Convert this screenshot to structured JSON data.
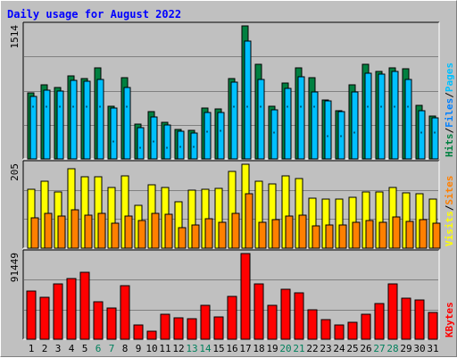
{
  "chart_data": {
    "type": "bar",
    "title": "Daily usage for August 2022",
    "colors": {
      "background": "#c0c0c0",
      "title": "#0000ff",
      "hits": "#008040",
      "files": "#0080ff",
      "pages": "#00c0ff",
      "visits": "#ff8000",
      "sites": "#ffff00",
      "kbytes": "#ff0000",
      "weekend_label": "#00805c"
    },
    "x": [
      "1",
      "2",
      "3",
      "4",
      "5",
      "6",
      "7",
      "8",
      "9",
      "10",
      "11",
      "12",
      "13",
      "14",
      "15",
      "16",
      "17",
      "18",
      "19",
      "20",
      "21",
      "22",
      "23",
      "24",
      "25",
      "26",
      "27",
      "28",
      "29",
      "30",
      "31"
    ],
    "weekend_days": [
      "6",
      "7",
      "13",
      "14",
      "20",
      "21",
      "27",
      "28"
    ],
    "panels": [
      {
        "id": "hits",
        "max_label": "1514",
        "ymax": 1514,
        "legend": [
          "Hits",
          "/",
          "Files",
          "/",
          "Pages"
        ],
        "series": [
          {
            "name": "Hits",
            "values": [
              753,
              848,
              814,
              942,
              917,
              1041,
              602,
              925,
              399,
              543,
              418,
              333,
              326,
              576,
              573,
              914,
              1514,
              1079,
              595,
              864,
              1039,
              926,
              668,
              548,
              839,
              1075,
              1000,
              1040,
              1025,
              606,
              488
            ]
          },
          {
            "name": "Files",
            "values": [
              711,
              786,
              777,
              890,
              880,
              900,
              579,
              808,
              351,
              481,
              389,
              319,
              299,
              526,
              533,
              870,
              1342,
              904,
              561,
              802,
              932,
              761,
              660,
              536,
              764,
              980,
              969,
              1000,
              900,
              551,
              469
            ]
          },
          {
            "name": "Pages",
            "values": [
              598,
              600,
              600,
              600,
              600,
              600,
              200,
              600,
              128,
              200,
              130,
              140,
              140,
              320,
              330,
              600,
              600,
              600,
              300,
              600,
              600,
              600,
              260,
              260,
              300,
              600,
              600,
              600,
              600,
              300,
              300
            ]
          }
        ]
      },
      {
        "id": "visits",
        "max_label": "205",
        "ymax": 205,
        "legend": [
          "Visits",
          "/",
          "Sites"
        ],
        "series": [
          {
            "name": "Visits",
            "values": [
              145,
              164,
              137,
              195,
              175,
              175,
              148,
              177,
              105,
              155,
              148,
              114,
              141,
              145,
              146,
              188,
              205,
              163,
              157,
              176,
              170,
              122,
              121,
              121,
              125,
              137,
              138,
              148,
              135,
              132,
              120
            ]
          },
          {
            "name": "Sites",
            "values": [
              75,
              86,
              79,
              93,
              80,
              86,
              60,
              78,
              68,
              84,
              82,
              51,
              56,
              72,
              64,
              84,
              133,
              64,
              70,
              79,
              81,
              55,
              57,
              57,
              63,
              67,
              64,
              77,
              66,
              69,
              62
            ]
          }
        ]
      },
      {
        "id": "kbytes",
        "max_label": "91449",
        "ymax": 91449,
        "legend": [
          "KBytes"
        ],
        "series": [
          {
            "name": "KBytes",
            "values": [
              51000,
              45000,
              59000,
              65000,
              71000,
              40000,
              33000,
              57000,
              15000,
              9000,
              27000,
              23000,
              22000,
              36000,
              24000,
              46000,
              91449,
              59000,
              36000,
              53000,
              50000,
              31000,
              21000,
              15000,
              18000,
              27000,
              38000,
              59000,
              44000,
              42000,
              29000
            ]
          }
        ]
      }
    ]
  }
}
